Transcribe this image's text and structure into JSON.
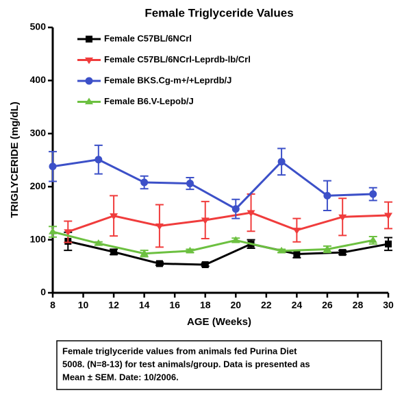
{
  "chart_data": {
    "type": "line",
    "title": "Female Triglyceride Values",
    "x_label": "AGE (Weeks)",
    "y_label": "TRIGLYCERIDE (mg/dL)",
    "xlim": [
      8,
      30
    ],
    "xticks": [
      8,
      10,
      12,
      14,
      16,
      18,
      20,
      22,
      24,
      26,
      28,
      30
    ],
    "ylim": [
      0,
      500
    ],
    "yticks": [
      0,
      100,
      200,
      300,
      400,
      500
    ],
    "series": [
      {
        "name": "Female C57BL/6NCrl",
        "color": "#000000",
        "marker": "square",
        "x": [
          9,
          12,
          15,
          18,
          21,
          24,
          27,
          30
        ],
        "values": [
          97,
          77,
          55,
          53,
          92,
          73,
          76,
          92
        ],
        "errors": [
          17,
          5,
          3,
          3,
          8,
          7,
          4,
          12
        ]
      },
      {
        "name": "Female C57BL/6NCrl-Leprdb-lb/Crl",
        "color": "#f03c3c",
        "marker": "triangle-down",
        "x": [
          9,
          12,
          15,
          18,
          21,
          24,
          27,
          30
        ],
        "values": [
          115,
          145,
          126,
          137,
          151,
          118,
          143,
          146
        ],
        "errors": [
          20,
          38,
          40,
          35,
          35,
          22,
          35,
          25
        ]
      },
      {
        "name": "Female BKS.Cg-m+/+Leprdb/J",
        "color": "#3c50c8",
        "marker": "circle",
        "x": [
          8,
          11,
          14,
          17,
          20,
          23,
          26,
          29
        ],
        "values": [
          238,
          251,
          208,
          206,
          158,
          247,
          183,
          186
        ],
        "errors": [
          28,
          27,
          12,
          11,
          18,
          25,
          28,
          12
        ]
      },
      {
        "name": "Female B6.V-Lepob/J",
        "color": "#6cc040",
        "marker": "triangle-up",
        "x": [
          8,
          11,
          14,
          17,
          20,
          23,
          26,
          29
        ],
        "values": [
          115,
          93,
          74,
          79,
          99,
          79,
          82,
          99
        ],
        "errors": [
          10,
          3,
          6,
          3,
          4,
          3,
          6,
          7
        ]
      }
    ],
    "note": [
      "Female triglyceride values from animals fed Purina Diet",
      "5008.  (N=8-13) for test animals/group.  Data is presented as",
      "Mean ± SEM.  Date: 10/2006."
    ]
  }
}
